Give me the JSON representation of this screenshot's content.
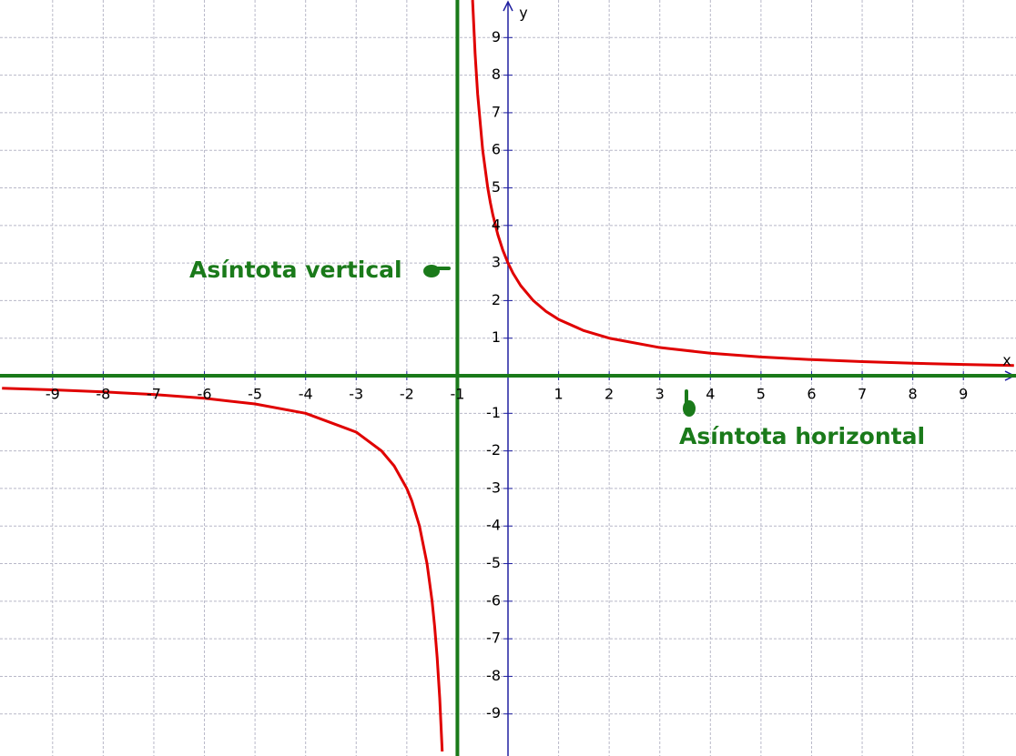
{
  "chart_data": {
    "type": "line",
    "x_label": "x",
    "y_label": "y",
    "xlim": [
      -10.04,
      10.04
    ],
    "ylim": [
      -10.12,
      10.0
    ],
    "xticks": [
      -9,
      -8,
      -7,
      -6,
      -5,
      -4,
      -3,
      -2,
      -1,
      1,
      2,
      3,
      4,
      5,
      6,
      7,
      8,
      9
    ],
    "yticks": [
      -9,
      -8,
      -7,
      -6,
      -5,
      -4,
      -3,
      -2,
      -1,
      1,
      2,
      3,
      4,
      5,
      6,
      7,
      8,
      9
    ],
    "grid": true,
    "asymptotes": {
      "x": -1,
      "y": 0,
      "color": "#1a7a1a"
    },
    "x": [
      -10,
      -9,
      -8,
      -7,
      -6,
      -5,
      -4,
      -3,
      -2.5,
      -2.25,
      -2,
      -1.9,
      -1.75,
      -1.6,
      -1.5,
      -1.45,
      -1.4,
      -1.35,
      -1.3,
      -1,
      -0.7,
      -0.65,
      -0.6,
      -0.5,
      -0.4,
      -0.35,
      -0.3,
      -0.2,
      -0.1,
      0,
      0.1,
      0.25,
      0.5,
      0.75,
      1,
      1.5,
      2,
      3,
      4,
      5,
      6,
      7,
      8,
      9,
      10
    ],
    "series": [
      {
        "color": "#e00000",
        "values": [
          -0.333,
          -0.375,
          -0.429,
          -0.5,
          -0.6,
          -0.75,
          -1,
          -1.5,
          -2,
          -2.4,
          -3,
          -3.333,
          -4,
          -5,
          -6,
          -6.667,
          -7.5,
          -8.571,
          -10,
          null,
          10,
          8.571,
          7.5,
          6,
          5,
          4.615,
          4.286,
          3.75,
          3.333,
          3,
          2.727,
          2.4,
          2,
          1.714,
          1.5,
          1.2,
          1,
          0.75,
          0.6,
          0.5,
          0.429,
          0.375,
          0.333,
          0.3,
          0.273
        ]
      }
    ],
    "annotations": [
      {
        "text": "Asíntota vertical"
      },
      {
        "text": "Asíntota horizontal"
      }
    ]
  }
}
